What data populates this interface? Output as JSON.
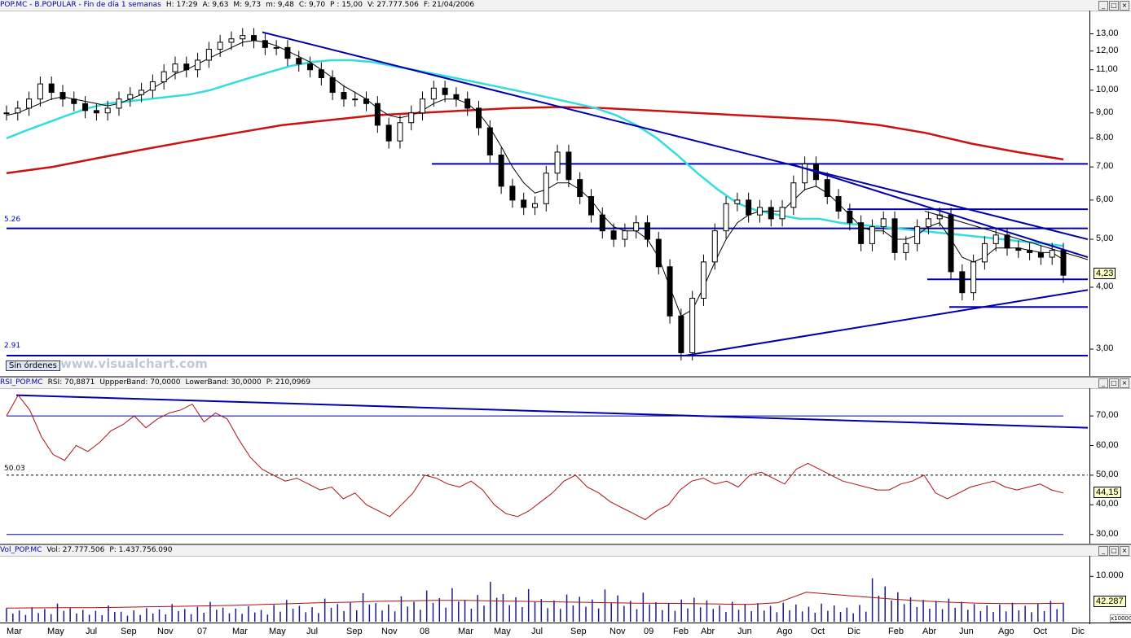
{
  "price_header": {
    "items": [
      "POP.MC - B.POPULAR - Fin de día 1 semanas",
      "H: 17:29",
      "A: 9,63",
      "M: 9,73",
      "m: 9,48",
      "C: 9,70",
      "P : 15,00",
      "V: 27.777.506",
      "F: 21/04/2006"
    ]
  },
  "rsi_header": {
    "items": [
      "RSI_POP.MC",
      "RSI: 70,8871",
      "UppperBand: 70,0000",
      "LowerBand: 30,0000",
      "P: 210,0969"
    ]
  },
  "vol_header": {
    "items": [
      "Vol_POP.MC",
      "Vol: 27.777.506",
      "P: 1.437.756.090"
    ]
  },
  "window_controls": [
    "min-icon",
    "max-icon",
    "close-icon"
  ],
  "badges": {
    "sin_ordenes": "Sin órdenes",
    "website": "www.visualchart.com"
  },
  "colors": {
    "price": "#000000",
    "ma_short": "#000000",
    "ma_mid": "#33dddd",
    "ma_long": "#cc1111",
    "trendline": "#0000aa",
    "rsi": "#aa1111",
    "volume": "#1a1a8a",
    "vol_ma": "#aa1111"
  },
  "chart_data": [
    {
      "type": "candlestick",
      "title": "POP.MC - B.POPULAR",
      "yscale": "log",
      "ylim": [
        2.75,
        14.0
      ],
      "y_ticks": [
        "13,00",
        "12,00",
        "11,00",
        "10,00",
        "9,00",
        "8,00",
        "7,00",
        "6,00",
        "5,00",
        "4,00",
        "3,00"
      ],
      "y_tick_values": [
        13,
        12,
        11,
        10,
        9,
        8,
        7,
        6,
        5,
        4,
        3
      ],
      "last_value": "4,23",
      "level_labels": [
        "5.26",
        "2.91"
      ],
      "horizontal_levels": [
        7.1,
        5.75,
        5.26,
        4.15,
        3.65,
        2.91
      ],
      "close_series": [
        9.0,
        9.2,
        9.6,
        10.3,
        9.9,
        9.6,
        9.4,
        9.1,
        9.0,
        9.2,
        9.6,
        9.8,
        10.0,
        10.4,
        10.9,
        11.3,
        11.0,
        11.5,
        12.1,
        12.5,
        12.7,
        12.9,
        12.6,
        12.2,
        12.2,
        11.6,
        11.3,
        11.0,
        10.6,
        9.9,
        9.6,
        9.6,
        9.4,
        8.5,
        7.9,
        8.6,
        9.0,
        9.6,
        10.1,
        9.8,
        9.6,
        9.2,
        8.4,
        7.4,
        6.4,
        6.0,
        5.8,
        5.9,
        6.8,
        7.5,
        6.6,
        6.1,
        5.6,
        5.2,
        5.0,
        5.2,
        5.4,
        5.0,
        4.4,
        3.5,
        2.95,
        3.8,
        4.5,
        5.2,
        5.9,
        6.0,
        5.6,
        5.8,
        5.5,
        5.8,
        6.5,
        7.1,
        6.6,
        6.1,
        5.7,
        5.4,
        4.9,
        5.3,
        5.5,
        4.7,
        4.9,
        5.3,
        5.5,
        5.6,
        4.3,
        3.9,
        4.5,
        4.9,
        5.1,
        4.8,
        4.75,
        4.7,
        4.6,
        4.75,
        4.23
      ],
      "ma_short": [
        8.9,
        9.0,
        9.2,
        9.4,
        9.6,
        9.7,
        9.6,
        9.5,
        9.4,
        9.3,
        9.4,
        9.6,
        9.8,
        10.1,
        10.4,
        10.8,
        11.0,
        11.3,
        11.6,
        11.9,
        12.2,
        12.5,
        12.6,
        12.5,
        12.3,
        12.0,
        11.7,
        11.4,
        11.0,
        10.6,
        10.2,
        9.9,
        9.6,
        9.2,
        8.9,
        8.8,
        8.9,
        9.1,
        9.4,
        9.6,
        9.6,
        9.4,
        9.0,
        8.4,
        7.7,
        7.0,
        6.5,
        6.2,
        6.3,
        6.5,
        6.5,
        6.3,
        6.0,
        5.6,
        5.3,
        5.2,
        5.2,
        5.0,
        4.6,
        4.0,
        3.5,
        3.6,
        4.0,
        4.5,
        5.0,
        5.4,
        5.6,
        5.7,
        5.7,
        5.7,
        6.0,
        6.3,
        6.4,
        6.2,
        5.9,
        5.6,
        5.3,
        5.2,
        5.2,
        5.0,
        5.0,
        5.1,
        5.3,
        5.4,
        5.0,
        4.6,
        4.5,
        4.6,
        4.8,
        4.8,
        4.8,
        4.75,
        4.7,
        4.7,
        4.55
      ],
      "ma_mid": [
        8.0,
        8.3,
        8.6,
        8.9,
        9.2,
        9.4,
        9.5,
        9.6,
        9.7,
        9.8,
        10.0,
        10.3,
        10.6,
        10.9,
        11.2,
        11.4,
        11.5,
        11.5,
        11.4,
        11.2,
        11.0,
        10.8,
        10.6,
        10.4,
        10.2,
        10.0,
        9.8,
        9.6,
        9.4,
        9.2,
        8.9,
        8.5,
        8.0,
        7.4,
        6.8,
        6.3,
        5.9,
        5.7,
        5.6,
        5.5,
        5.5,
        5.4,
        5.35,
        5.3,
        5.25,
        5.2,
        5.15,
        5.1,
        5.05,
        5.0,
        4.95,
        4.9,
        4.85
      ],
      "ma_long": [
        6.8,
        7.0,
        7.3,
        7.6,
        7.9,
        8.2,
        8.5,
        8.7,
        8.9,
        9.0,
        9.1,
        9.2,
        9.25,
        9.2,
        9.1,
        9.0,
        8.9,
        8.8,
        8.7,
        8.5,
        8.2,
        7.8,
        7.5,
        7.25
      ]
    },
    {
      "type": "line",
      "title": "RSI_POP.MC",
      "ylim": [
        28,
        78
      ],
      "y_ticks": [
        "70,00",
        "60,00",
        "50,00",
        "40,00",
        "30,00"
      ],
      "y_tick_values": [
        70,
        60,
        50,
        40,
        30
      ],
      "bands": [
        70,
        50,
        30
      ],
      "level_label": "50.03",
      "last_value": "44,15",
      "values": [
        70,
        77,
        72,
        63,
        57,
        55,
        60,
        58,
        61,
        65,
        67,
        70,
        66,
        69,
        71,
        72,
        74,
        68,
        71,
        69,
        62,
        56,
        52,
        50,
        48,
        49,
        47,
        45,
        46,
        42,
        44,
        40,
        38,
        36,
        40,
        44,
        50,
        49,
        47,
        46,
        48,
        45,
        40,
        37,
        36,
        38,
        41,
        44,
        48,
        50,
        46,
        44,
        41,
        39,
        37,
        35,
        38,
        40,
        45,
        48,
        49,
        47,
        48,
        46,
        50,
        51,
        49,
        47,
        52,
        54,
        52,
        50,
        48,
        47,
        46,
        45,
        45,
        47,
        48,
        50,
        44,
        42,
        44,
        46,
        47,
        48,
        46,
        45,
        46,
        47,
        45,
        44
      ],
      "trendline": [
        77,
        66
      ]
    },
    {
      "type": "bar",
      "title": "Vol_POP.MC",
      "ylim": [
        0,
        14
      ],
      "y_ticks": [
        "10.000"
      ],
      "y_tick_values": [
        10
      ],
      "scale_label": "x10000",
      "last_value": "42.287",
      "values": [
        3,
        2.5,
        3.2,
        2.8,
        4,
        3,
        2.6,
        2.4,
        3.6,
        2.2,
        2.5,
        3,
        2.7,
        3.9,
        2.8,
        3.3,
        4.4,
        3.1,
        2.9,
        3.4,
        2.6,
        3.7,
        4.8,
        3.5,
        3.2,
        5.1,
        3.9,
        4.2,
        6.3,
        4.1,
        3.8,
        5.6,
        4.4,
        6.9,
        5.2,
        7.4,
        4.8,
        5.9,
        8.8,
        6.1,
        5.4,
        7.2,
        5.0,
        4.7,
        6.0,
        5.5,
        4.9,
        7.1,
        5.8,
        4.6,
        6.4,
        4.3,
        4.0,
        4.9,
        5.3,
        4.7,
        3.6,
        4.4,
        3.9,
        4.1,
        3.5,
        4.2,
        3.8,
        3.3,
        4.0,
        3.6,
        3.1,
        3.7,
        9.6,
        7.8,
        6.5,
        5.4,
        4.8,
        4.6,
        5.1,
        4.4,
        3.9,
        3.6,
        3.8,
        4.2,
        3.5,
        3.9,
        4.6,
        4.2
      ],
      "ma": [
        3,
        3.05,
        3.1,
        3.1,
        3.2,
        3.3,
        3.4,
        3.5,
        3.6,
        3.8,
        4,
        4.2,
        4.3,
        4.5,
        4.6,
        4.7,
        4.7,
        4.6,
        4.5,
        4.4,
        4.3,
        4.2,
        4.1,
        4.05,
        4.0,
        3.9,
        3.8,
        4.2,
        6.5,
        6.0,
        5.5,
        5.0,
        4.6,
        4.3,
        4.1,
        4.0,
        4.0,
        4.1
      ]
    }
  ],
  "x_axis_labels": [
    "Mar",
    "May",
    "Jul",
    "Sep",
    "Nov",
    "07",
    "Mar",
    "May",
    "Jul",
    "Sep",
    "Nov",
    "08",
    "Mar",
    "May",
    "Jul",
    "Sep",
    "Nov",
    "09",
    "Feb",
    "Abr",
    "Jun",
    "Ago",
    "Oct",
    "Dic",
    "Feb",
    "Abr",
    "Jun",
    "Ago",
    "Oct",
    "Dic"
  ]
}
